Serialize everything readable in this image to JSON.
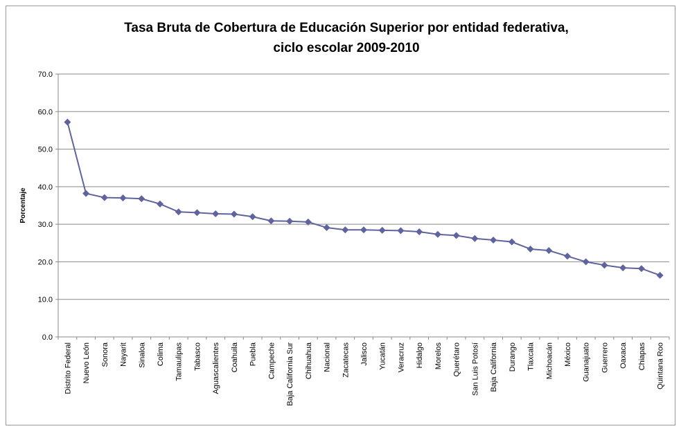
{
  "chart_data": {
    "type": "line",
    "title": [
      "Tasa Bruta de Cobertura de Educación Superior por entidad federativa,",
      "ciclo escolar 2009-2010"
    ],
    "y_label": "Porcentaje",
    "categories": [
      "Distrito Federal",
      "Nuevo León",
      "Sonora",
      "Nayarit",
      "Sinaloa",
      "Colima",
      "Tamaulipas",
      "Tabasco",
      "Aguascalientes",
      "Coahuila",
      "Puebla",
      "Campeche",
      "Baja California Sur",
      "Chihuahua",
      "Nacional",
      "Zacatecas",
      "Jalisco",
      "Yucatán",
      "Veracruz",
      "Hidalgo",
      "Morelos",
      "Querétaro",
      "San Luis Potosí",
      "Baja California",
      "Durango",
      "Tlaxcala",
      "Michoacán",
      "México",
      "Guanajuato",
      "Guerrero",
      "Oaxaca",
      "Chiapas",
      "Quintana Roo"
    ],
    "values": [
      57.2,
      38.2,
      37.1,
      37.0,
      36.8,
      35.4,
      33.3,
      33.1,
      32.8,
      32.7,
      32.0,
      30.9,
      30.8,
      30.6,
      29.1,
      28.5,
      28.5,
      28.4,
      28.3,
      28.0,
      27.3,
      27.0,
      26.2,
      25.8,
      25.3,
      23.4,
      23.0,
      21.5,
      20.0,
      19.1,
      18.4,
      18.2,
      16.4
    ],
    "color": "#5f639e",
    "ylim": [
      0,
      70
    ],
    "yticks": [
      {
        "value": 0,
        "label": "0.0"
      },
      {
        "value": 10,
        "label": "10.0"
      },
      {
        "value": 20,
        "label": "20.0"
      },
      {
        "value": 30,
        "label": "30.0"
      },
      {
        "value": 40,
        "label": "40.0"
      },
      {
        "value": 50,
        "label": "50.0"
      },
      {
        "value": 60,
        "label": "60.0"
      },
      {
        "value": 70,
        "label": "70.0"
      }
    ],
    "grid": true
  }
}
